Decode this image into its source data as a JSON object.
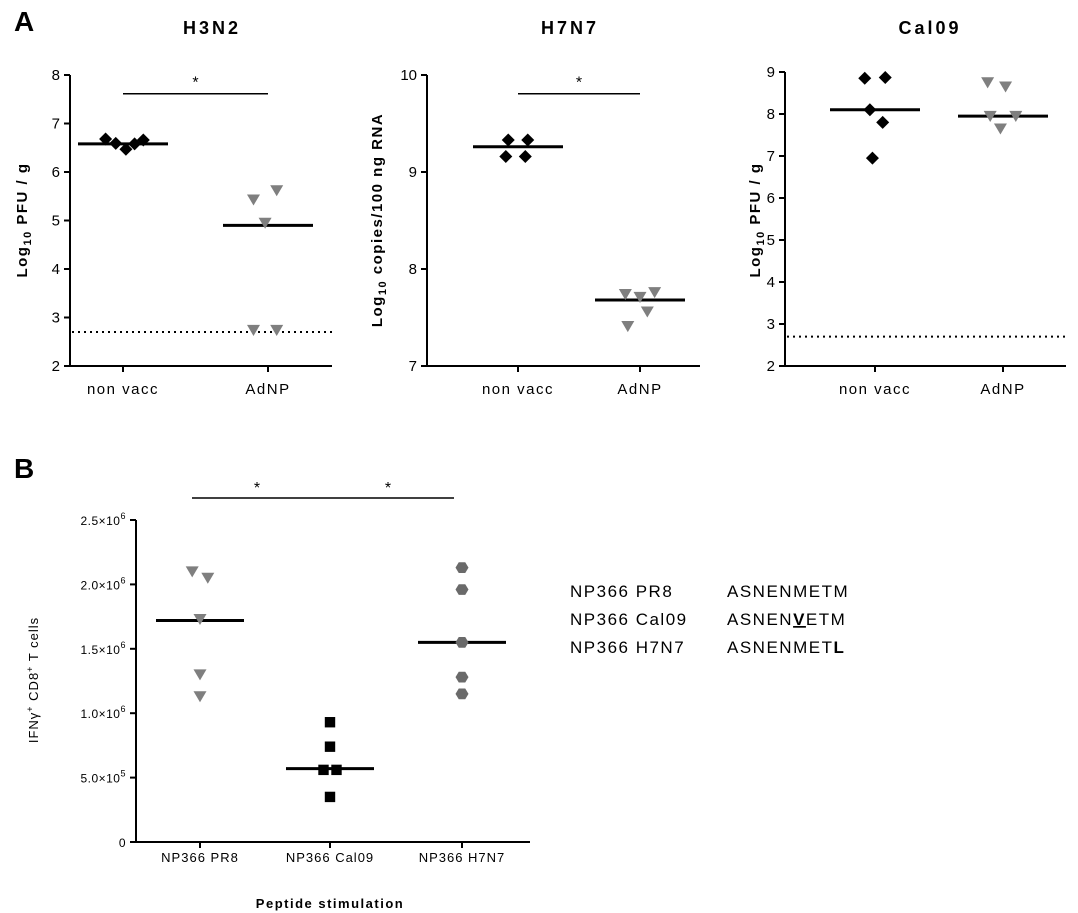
{
  "panel_labels": {
    "a": "A",
    "b": "B"
  },
  "colors": {
    "black": "#000000",
    "gray": "#7f7f7f",
    "darkgray": "#6a6a6a",
    "line": "#000000"
  },
  "chart_data": [
    {
      "id": "h3n2",
      "type": "scatter",
      "title": "H3N2",
      "ylabel_parts": {
        "pre": "Log",
        "sub": "10",
        "post": " PFU / g"
      },
      "categories": [
        "non vacc",
        "AdNP"
      ],
      "ylim": [
        2,
        8
      ],
      "yticks": [
        "2",
        "3",
        "4",
        "5",
        "6",
        "7",
        "8"
      ],
      "detection_limit": 2.7,
      "significance": {
        "label": "*",
        "from": 0,
        "to": 1,
        "y": 7.8
      },
      "series": [
        {
          "category": 0,
          "marker": "diamond",
          "color": "#000000",
          "mean": 6.58,
          "points": [
            [
              -0.12,
              6.68
            ],
            [
              -0.05,
              6.59
            ],
            [
              0.02,
              6.47
            ],
            [
              0.08,
              6.58
            ],
            [
              0.14,
              6.66
            ]
          ]
        },
        {
          "category": 1,
          "marker": "triangle-down",
          "color": "#7f7f7f",
          "mean": 4.9,
          "points": [
            [
              -0.1,
              5.43
            ],
            [
              0.06,
              5.62
            ],
            [
              -0.02,
              4.95
            ],
            [
              -0.1,
              2.74
            ],
            [
              0.06,
              2.74
            ]
          ]
        }
      ]
    },
    {
      "id": "h7n7",
      "type": "scatter",
      "title": "H7N7",
      "ylabel_parts": {
        "pre": "Log",
        "sub": "10",
        "post": " copies/100 ng RNA"
      },
      "categories": [
        "non vacc",
        "AdNP"
      ],
      "ylim": [
        7,
        10
      ],
      "yticks": [
        "7",
        "8",
        "9",
        "10"
      ],
      "significance": {
        "label": "*",
        "from": 0,
        "to": 1,
        "y": 9.9
      },
      "series": [
        {
          "category": 0,
          "marker": "diamond",
          "color": "#000000",
          "mean": 9.26,
          "points": [
            [
              -0.08,
              9.33
            ],
            [
              0.08,
              9.33
            ],
            [
              -0.1,
              9.16
            ],
            [
              0.06,
              9.16
            ]
          ]
        },
        {
          "category": 1,
          "marker": "triangle-down",
          "color": "#7f7f7f",
          "mean": 7.68,
          "points": [
            [
              -0.12,
              7.74
            ],
            [
              0.0,
              7.71
            ],
            [
              0.12,
              7.76
            ],
            [
              -0.1,
              7.41
            ],
            [
              0.06,
              7.56
            ]
          ]
        }
      ]
    },
    {
      "id": "cal09",
      "type": "scatter",
      "title": "Cal09",
      "ylabel_parts": {
        "pre": "Log",
        "sub": "10",
        "post": " PFU / g"
      },
      "categories": [
        "non vacc",
        "AdNP"
      ],
      "ylim": [
        2,
        9
      ],
      "yticks": [
        "2",
        "3",
        "4",
        "5",
        "6",
        "7",
        "8",
        "9"
      ],
      "detection_limit": 2.7,
      "series": [
        {
          "category": 0,
          "marker": "diamond",
          "color": "#000000",
          "mean": 8.1,
          "points": [
            [
              -0.08,
              8.85
            ],
            [
              0.08,
              8.87
            ],
            [
              -0.04,
              8.1
            ],
            [
              0.06,
              7.8
            ],
            [
              -0.02,
              6.95
            ]
          ]
        },
        {
          "category": 1,
          "marker": "triangle-down",
          "color": "#7f7f7f",
          "mean": 7.95,
          "points": [
            [
              -0.12,
              8.75
            ],
            [
              0.02,
              8.65
            ],
            [
              -0.1,
              7.95
            ],
            [
              0.1,
              7.95
            ],
            [
              -0.02,
              7.65
            ]
          ]
        }
      ]
    },
    {
      "id": "panelB",
      "type": "scatter",
      "ylabel_parts": {
        "a": "IFN",
        "b": "γ",
        "c": "+",
        "d": " CD8",
        "e": "+",
        "f": " T cells"
      },
      "xlabel": "Peptide stimulation",
      "categories": [
        "NP366 PR8",
        "NP366 Cal09",
        "NP366 H7N7"
      ],
      "ylim": [
        0,
        2500000
      ],
      "yticks": [
        {
          "v": 0,
          "m": "0",
          "e": ""
        },
        {
          "v": 500000,
          "m": "5.0×10",
          "e": "5"
        },
        {
          "v": 1000000,
          "m": "1.0×10",
          "e": "6"
        },
        {
          "v": 1500000,
          "m": "1.5×10",
          "e": "6"
        },
        {
          "v": 2000000,
          "m": "2.0×10",
          "e": "6"
        },
        {
          "v": 2500000,
          "m": "2.5×10",
          "e": "6"
        }
      ],
      "significance": [
        {
          "label": "*",
          "from": 0,
          "to": 1,
          "y": 2640000
        },
        {
          "label": "*",
          "from": 1,
          "to": 2,
          "y": 2640000
        }
      ],
      "series": [
        {
          "category": 0,
          "marker": "triangle-down",
          "color": "#7f7f7f",
          "mean": 1720000,
          "points": [
            [
              -0.06,
              2100000
            ],
            [
              0.06,
              2050000
            ],
            [
              0.0,
              1730000
            ],
            [
              0.0,
              1300000
            ],
            [
              0.0,
              1130000
            ]
          ]
        },
        {
          "category": 1,
          "marker": "square",
          "color": "#000000",
          "mean": 570000,
          "points": [
            [
              0.0,
              930000
            ],
            [
              0.0,
              740000
            ],
            [
              -0.05,
              560000
            ],
            [
              0.05,
              560000
            ],
            [
              0.0,
              350000
            ]
          ]
        },
        {
          "category": 2,
          "marker": "hexagon",
          "color": "#6a6a6a",
          "mean": 1550000,
          "points": [
            [
              0.0,
              2130000
            ],
            [
              0.0,
              1960000
            ],
            [
              0.0,
              1550000
            ],
            [
              0.0,
              1280000
            ],
            [
              0.0,
              1150000
            ]
          ]
        }
      ]
    }
  ],
  "sequences": [
    {
      "name": "NP366 PR8",
      "seq_pre": "ASNENMETM",
      "seq_mut": "",
      "seq_post": ""
    },
    {
      "name": "NP366 Cal09",
      "seq_pre": "ASNEN",
      "seq_mut": "V",
      "seq_post": "ETM"
    },
    {
      "name": "NP366 H7N7",
      "seq_pre": "ASNENMET",
      "seq_mut": "L",
      "seq_post": ""
    }
  ]
}
